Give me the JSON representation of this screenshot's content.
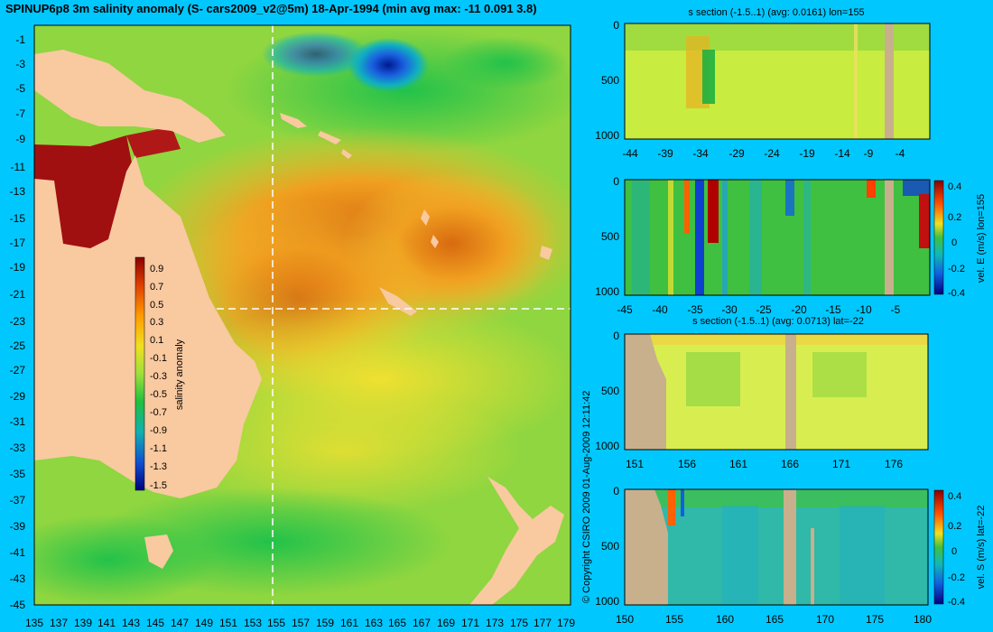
{
  "title": "SPINUP6p8 3m salinity anomaly (S- cars2009_v2@5m) 18-Apr-1994 (min avg max: -11 0.091 3.8)",
  "copyright": "© Copyright CSIRO 2009   01-Aug-2009 12:11:42",
  "main_map": {
    "lat_ticks": [
      "-1",
      "-3",
      "-5",
      "-7",
      "-9",
      "-11",
      "-13",
      "-15",
      "-17",
      "-19",
      "-21",
      "-23",
      "-25",
      "-27",
      "-29",
      "-31",
      "-33",
      "-35",
      "-37",
      "-39",
      "-41",
      "-43",
      "-45"
    ],
    "lon_ticks": [
      "135",
      "137",
      "139",
      "141",
      "143",
      "145",
      "147",
      "149",
      "151",
      "153",
      "155",
      "157",
      "159",
      "161",
      "163",
      "165",
      "167",
      "169",
      "171",
      "173",
      "175",
      "177",
      "179"
    ],
    "colorbar_label": "salinity anomaly",
    "colorbar_ticks": [
      "0.9",
      "0.7",
      "0.5",
      "0.3",
      "0.1",
      "-0.1",
      "-0.3",
      "-0.5",
      "-0.7",
      "-0.9",
      "-1.1",
      "-1.3",
      "-1.5"
    ]
  },
  "panel1": {
    "title": "s section (-1.5..1) (avg: 0.0161) lon=155",
    "y_ticks": [
      "0",
      "500",
      "1000"
    ],
    "x_ticks": [
      "-44",
      "-39",
      "-34",
      "-29",
      "-24",
      "-19",
      "-14",
      "-9",
      "-4"
    ]
  },
  "panel2": {
    "y_ticks": [
      "0",
      "500",
      "1000"
    ],
    "x_ticks": [
      "-45",
      "-40",
      "-35",
      "-30",
      "-25",
      "-20",
      "-15",
      "-10",
      "-5"
    ],
    "cbar_label": "vel. E (m/s) lon=155",
    "cbar_ticks": [
      "0.4",
      "0.2",
      "0",
      "-0.2",
      "-0.4"
    ]
  },
  "panel3": {
    "title": "s section (-1.5..1) (avg: 0.0713) lat=-22",
    "y_ticks": [
      "0",
      "500",
      "1000"
    ],
    "x_ticks": [
      "151",
      "156",
      "161",
      "166",
      "171",
      "176"
    ]
  },
  "panel4": {
    "y_ticks": [
      "0",
      "500",
      "1000"
    ],
    "x_ticks": [
      "150",
      "155",
      "160",
      "165",
      "170",
      "175",
      "180"
    ],
    "cbar_label": "vel. S (m/s) lat=-22",
    "cbar_ticks": [
      "0.4",
      "0.2",
      "0",
      "-0.2",
      "-0.4"
    ]
  },
  "colors": {
    "background": "#00c8ff",
    "land": "#f9c9a0",
    "section_land": "#c8b08c",
    "ocean_base": "#7fd23c"
  }
}
